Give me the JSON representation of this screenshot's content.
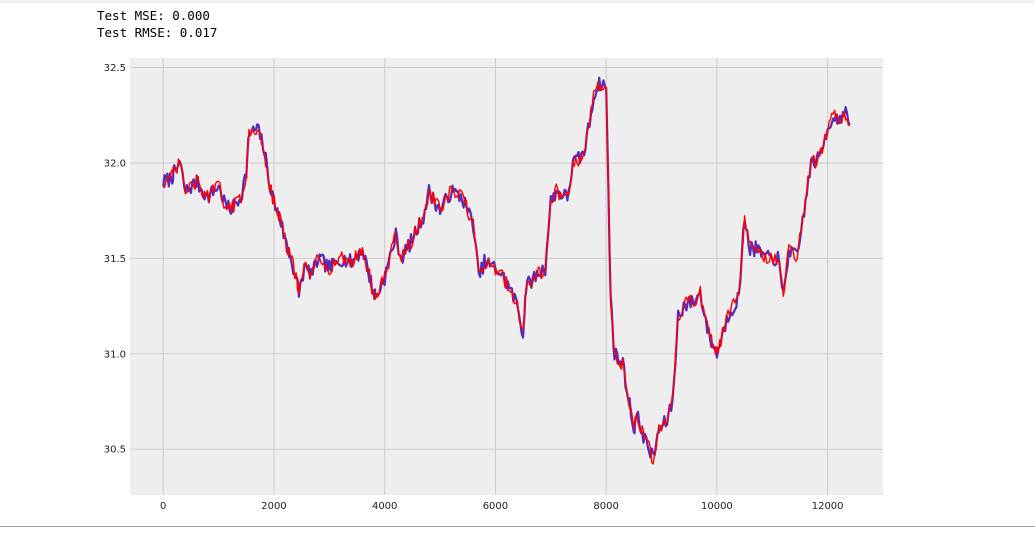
{
  "output": {
    "mse_line": "Test MSE: 0.000",
    "rmse_line": "Test RMSE: 0.017"
  },
  "colors": {
    "plot_background": "#eeeeee",
    "grid": "#cbcbcb",
    "actual_series": "#5a2ab8",
    "predicted_series": "#ff0000"
  },
  "chart_data": {
    "type": "line",
    "title": "",
    "xlabel": "",
    "ylabel": "",
    "xlim": [
      -600,
      13000
    ],
    "ylim": [
      30.26,
      32.55
    ],
    "grid": true,
    "legend": "none",
    "xticks": [
      0,
      2000,
      4000,
      6000,
      8000,
      10000,
      12000
    ],
    "yticks": [
      30.5,
      31.0,
      31.5,
      32.0,
      32.5
    ],
    "series": [
      {
        "role": "actual",
        "color": "#5a2ab8",
        "x": [
          0,
          150,
          200,
          300,
          400,
          600,
          800,
          1000,
          1100,
          1200,
          1400,
          1500,
          1550,
          1700,
          1800,
          1950,
          2050,
          2100,
          2200,
          2300,
          2400,
          2450,
          2550,
          2700,
          2800,
          3000,
          3200,
          3400,
          3600,
          3800,
          3850,
          4000,
          4200,
          4300,
          4500,
          4700,
          4800,
          5000,
          5200,
          5400,
          5600,
          5700,
          5800,
          6000,
          6100,
          6250,
          6400,
          6500,
          6550,
          6700,
          6900,
          7000,
          7100,
          7300,
          7400,
          7500,
          7600,
          7800,
          7900,
          8000,
          8080,
          8150,
          8300,
          8500,
          8550,
          8700,
          8850,
          8950,
          9100,
          9200,
          9300,
          9400,
          9600,
          9700,
          9850,
          10000,
          10200,
          10400,
          10500,
          10600,
          10700,
          10900,
          11100,
          11200,
          11300,
          11450,
          11600,
          11700,
          11850,
          12000,
          12100,
          12200,
          12300,
          12400
        ],
        "y": [
          31.9,
          31.92,
          31.95,
          32.0,
          31.85,
          31.9,
          31.82,
          31.88,
          31.8,
          31.75,
          31.82,
          31.95,
          32.15,
          32.18,
          32.1,
          31.85,
          31.75,
          31.72,
          31.6,
          31.5,
          31.4,
          31.32,
          31.45,
          31.42,
          31.5,
          31.45,
          31.5,
          31.48,
          31.55,
          31.32,
          31.3,
          31.4,
          31.62,
          31.5,
          31.6,
          31.72,
          31.85,
          31.75,
          31.85,
          31.82,
          31.68,
          31.4,
          31.48,
          31.45,
          31.42,
          31.35,
          31.25,
          31.1,
          31.35,
          31.4,
          31.45,
          31.8,
          31.85,
          31.82,
          32.0,
          32.02,
          32.05,
          32.38,
          32.42,
          32.4,
          31.3,
          31.0,
          30.95,
          30.6,
          30.68,
          30.55,
          30.45,
          30.6,
          30.65,
          30.75,
          31.2,
          31.25,
          31.28,
          31.32,
          31.1,
          31.0,
          31.2,
          31.3,
          31.72,
          31.55,
          31.55,
          31.5,
          31.5,
          31.3,
          31.55,
          31.5,
          31.8,
          32.0,
          32.02,
          32.18,
          32.25,
          32.22,
          32.28,
          32.2
        ]
      },
      {
        "role": "predicted",
        "color": "#ff0000",
        "x": [
          0,
          150,
          200,
          300,
          400,
          600,
          800,
          1000,
          1100,
          1200,
          1400,
          1500,
          1550,
          1700,
          1800,
          1950,
          2050,
          2100,
          2200,
          2300,
          2400,
          2450,
          2550,
          2700,
          2800,
          3000,
          3200,
          3400,
          3600,
          3800,
          3850,
          4000,
          4200,
          4300,
          4500,
          4700,
          4800,
          5000,
          5200,
          5400,
          5600,
          5700,
          5800,
          6000,
          6100,
          6250,
          6400,
          6500,
          6550,
          6700,
          6900,
          7000,
          7100,
          7300,
          7400,
          7500,
          7600,
          7800,
          7900,
          8000,
          8080,
          8150,
          8300,
          8500,
          8550,
          8700,
          8850,
          8950,
          9100,
          9200,
          9300,
          9400,
          9600,
          9700,
          9850,
          10000,
          10200,
          10400,
          10500,
          10600,
          10700,
          10900,
          11100,
          11200,
          11300,
          11450,
          11600,
          11700,
          11850,
          12000,
          12100,
          12200,
          12300,
          12400
        ],
        "y": [
          31.9,
          31.92,
          31.95,
          32.0,
          31.85,
          31.9,
          31.82,
          31.88,
          31.8,
          31.75,
          31.82,
          31.95,
          32.15,
          32.18,
          32.1,
          31.85,
          31.75,
          31.72,
          31.6,
          31.5,
          31.4,
          31.32,
          31.45,
          31.42,
          31.5,
          31.45,
          31.5,
          31.48,
          31.55,
          31.32,
          31.3,
          31.4,
          31.62,
          31.5,
          31.6,
          31.72,
          31.85,
          31.75,
          31.85,
          31.82,
          31.68,
          31.4,
          31.48,
          31.45,
          31.42,
          31.35,
          31.25,
          31.1,
          31.35,
          31.4,
          31.45,
          31.8,
          31.85,
          31.82,
          32.0,
          32.02,
          32.05,
          32.38,
          32.42,
          32.4,
          31.3,
          31.0,
          30.95,
          30.6,
          30.68,
          30.55,
          30.45,
          30.6,
          30.65,
          30.75,
          31.2,
          31.25,
          31.28,
          31.32,
          31.1,
          31.0,
          31.2,
          31.3,
          31.72,
          31.55,
          31.55,
          31.5,
          31.5,
          31.3,
          31.55,
          31.5,
          31.8,
          32.0,
          32.02,
          32.18,
          32.25,
          32.22,
          32.28,
          32.2
        ]
      }
    ]
  }
}
